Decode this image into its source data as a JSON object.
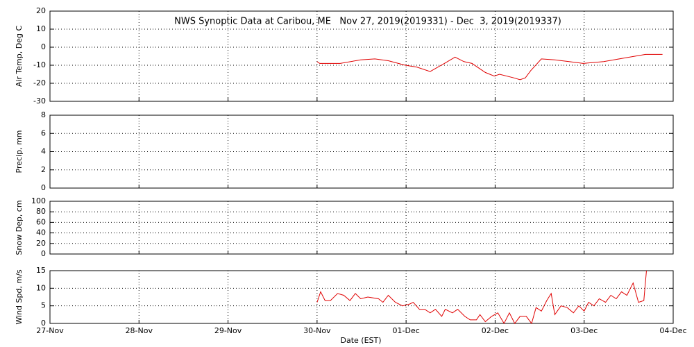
{
  "chart_data": [
    {
      "type": "line",
      "title": "NWS Synoptic Data at Caribou, ME   Nov 27, 2019(2019331) - Dec  3, 2019(2019337)",
      "ylabel": "Air Temp, Deg C",
      "xlim": [
        0,
        7
      ],
      "ylim": [
        -30,
        20
      ],
      "yticks": [
        -30,
        -20,
        -10,
        0,
        10,
        20
      ],
      "grid": true,
      "color": "#e00000",
      "x": [
        3.0,
        3.03,
        3.26,
        3.49,
        3.65,
        3.8,
        3.99,
        4.12,
        4.27,
        4.43,
        4.55,
        4.65,
        4.74,
        4.89,
        4.99,
        5.05,
        5.21,
        5.28,
        5.34,
        5.4,
        5.52,
        5.67,
        5.83,
        5.99,
        6.22,
        6.45,
        6.69,
        6.88
      ],
      "values": [
        -8,
        -9,
        -9,
        -7,
        -6.5,
        -7.5,
        -10,
        -11,
        -13.5,
        -9,
        -5.5,
        -8,
        -9,
        -14,
        -16,
        -15,
        -17,
        -18,
        -17,
        -13,
        -6.5,
        -7,
        -8,
        -9,
        -8,
        -6,
        -4,
        -4
      ]
    },
    {
      "type": "line",
      "ylabel": "Precip, mm",
      "xlim": [
        0,
        7
      ],
      "ylim": [
        0,
        8
      ],
      "yticks": [
        0,
        2,
        4,
        6,
        8
      ],
      "grid": true
    },
    {
      "type": "line",
      "ylabel": "Snow Dep, cm",
      "xlim": [
        0,
        7
      ],
      "ylim": [
        0,
        100
      ],
      "yticks": [
        0,
        20,
        40,
        60,
        80,
        100
      ],
      "grid": true
    },
    {
      "type": "line",
      "ylabel": "Wind Spd, m/s",
      "xlabel": "Date (EST)",
      "xlim": [
        0,
        7
      ],
      "ylim": [
        0,
        15
      ],
      "yticks": [
        0,
        5,
        10,
        15
      ],
      "grid": true,
      "color": "#e00000",
      "xticks": [
        {
          "value": 0,
          "label": "27-Nov"
        },
        {
          "value": 1,
          "label": "28-Nov"
        },
        {
          "value": 2,
          "label": "29-Nov"
        },
        {
          "value": 3,
          "label": "30-Nov"
        },
        {
          "value": 4,
          "label": "01-Dec"
        },
        {
          "value": 5,
          "label": "02-Dec"
        },
        {
          "value": 6,
          "label": "03-Dec"
        },
        {
          "value": 7,
          "label": "04-Dec"
        }
      ],
      "x": [
        3.0,
        3.04,
        3.09,
        3.15,
        3.23,
        3.3,
        3.37,
        3.43,
        3.49,
        3.57,
        3.69,
        3.74,
        3.8,
        3.88,
        3.96,
        4.04,
        4.08,
        4.15,
        4.21,
        4.27,
        4.33,
        4.4,
        4.44,
        4.52,
        4.58,
        4.66,
        4.72,
        4.79,
        4.83,
        4.89,
        4.96,
        5.03,
        5.1,
        5.16,
        5.22,
        5.28,
        5.35,
        5.41,
        5.46,
        5.52,
        5.58,
        5.63,
        5.67,
        5.74,
        5.81,
        5.88,
        5.94,
        6.0,
        6.05,
        6.11,
        6.17,
        6.24,
        6.3,
        6.36,
        6.42,
        6.48,
        6.55,
        6.61,
        6.67,
        6.7
      ],
      "values": [
        6,
        9,
        6.5,
        6.5,
        8.5,
        8,
        6.5,
        8.5,
        7,
        7.5,
        7,
        6,
        8,
        6,
        5,
        5.5,
        6,
        4,
        4,
        3,
        4,
        2,
        4,
        3,
        4,
        2,
        1,
        1,
        2.5,
        0.5,
        2,
        3,
        0,
        3,
        0,
        2,
        2,
        0,
        4.5,
        3.5,
        6.5,
        8.5,
        2.5,
        5,
        4.5,
        3,
        5,
        3.5,
        6,
        5,
        7,
        6,
        8,
        7,
        9,
        8,
        11.5,
        6,
        6.5,
        15
      ]
    }
  ]
}
